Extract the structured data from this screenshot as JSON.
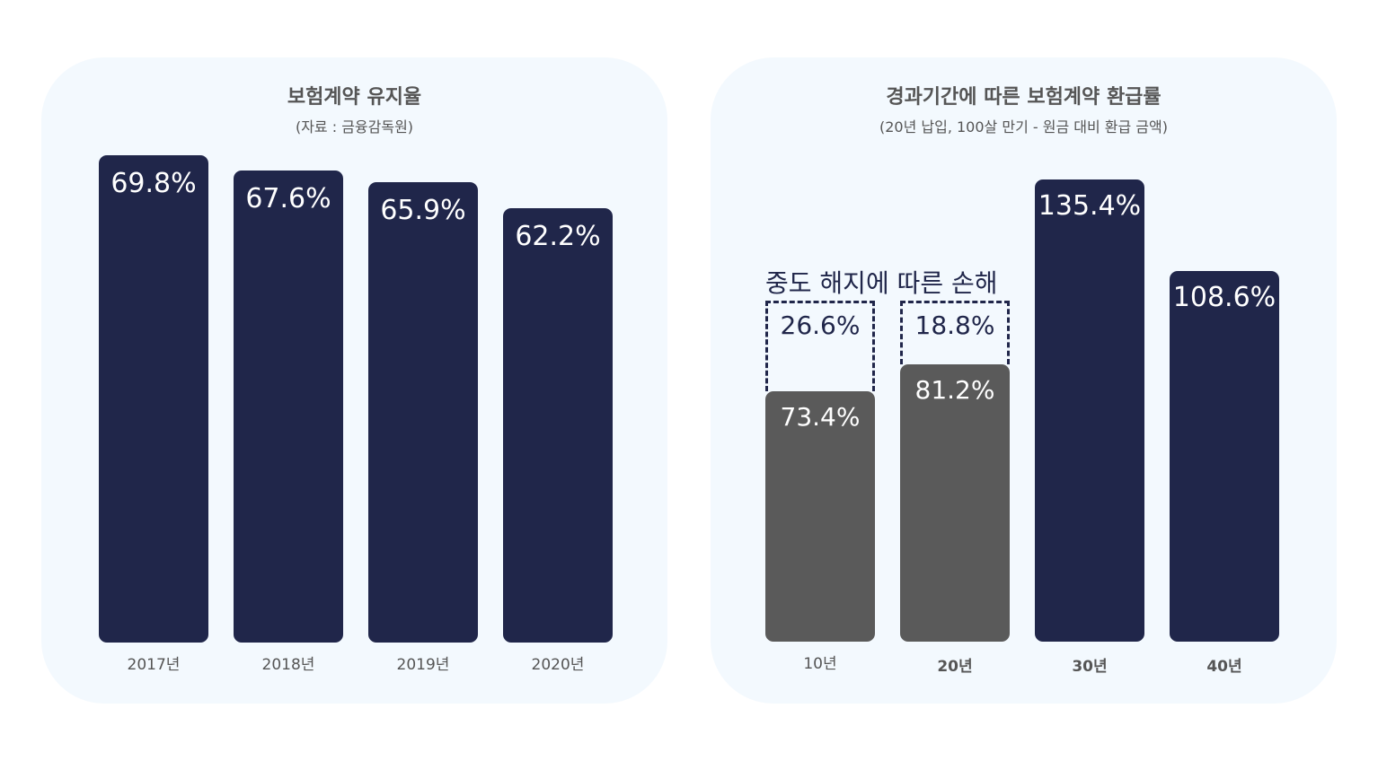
{
  "colors": {
    "navy": "#20264a",
    "gray": "#5a5a5a",
    "panel_bg": "#f3f9fe",
    "text": "#555555"
  },
  "chart_data": [
    {
      "type": "bar",
      "title": "보험계약 유지율",
      "subtitle": "(자료 : 금융감독원)",
      "categories": [
        "2017년",
        "2018년",
        "2019년",
        "2020년"
      ],
      "values": [
        69.8,
        67.6,
        65.9,
        62.2
      ],
      "value_labels": [
        "69.8%",
        "67.6%",
        "65.9%",
        "62.2%"
      ],
      "ylim": [
        0,
        70
      ]
    },
    {
      "type": "bar",
      "title": "경과기간에 따른 보험계약 환급률",
      "subtitle": "(20년 납입, 100살 만기 - 원금 대비 환급 금액)",
      "categories": [
        "10년",
        "20년",
        "30년",
        "40년"
      ],
      "series": [
        {
          "values": [
            73.4,
            81.2,
            135.4,
            108.6
          ],
          "value_labels": [
            "73.4%",
            "81.2%",
            "135.4%",
            "108.6%"
          ]
        },
        {
          "values": [
            26.6,
            18.8,
            null,
            null
          ],
          "value_labels": [
            "26.6%",
            "18.8%",
            "",
            ""
          ]
        }
      ],
      "annotation": "중도 해지에 따른 손해",
      "ylim": [
        0,
        140
      ]
    }
  ]
}
